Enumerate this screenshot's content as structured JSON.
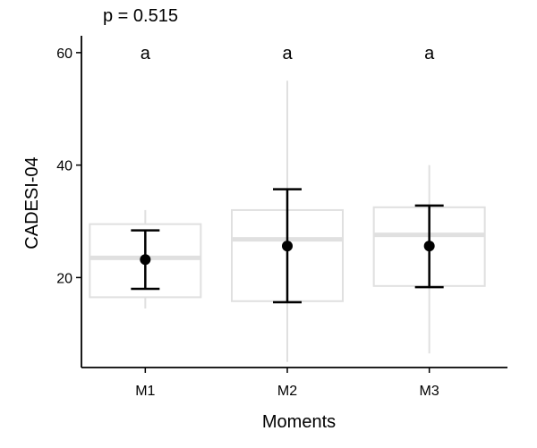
{
  "chart_data": {
    "type": "box",
    "annotation": "p = 0.515",
    "xlabel": "Moments",
    "ylabel": "CADESI-04",
    "categories": [
      "M1",
      "M2",
      "M3"
    ],
    "group_letters": [
      "a",
      "a",
      "a"
    ],
    "ylim": [
      4,
      63
    ],
    "yticks": [
      20,
      40,
      60
    ],
    "grid": false,
    "boxplot": [
      {
        "name": "M1",
        "whisker_low": 14.5,
        "q1": 16.5,
        "median": 23.5,
        "q3": 29.5,
        "whisker_high": 32.0
      },
      {
        "name": "M2",
        "whisker_low": 5.0,
        "q1": 15.8,
        "median": 26.8,
        "q3": 32.0,
        "whisker_high": 55.0
      },
      {
        "name": "M3",
        "whisker_low": 6.5,
        "q1": 18.5,
        "median": 27.6,
        "q3": 32.5,
        "whisker_high": 40.0
      }
    ],
    "mean_sd": [
      {
        "name": "M1",
        "mean": 23.2,
        "lower": 18.0,
        "upper": 28.4
      },
      {
        "name": "M2",
        "mean": 25.6,
        "lower": 15.6,
        "upper": 35.7
      },
      {
        "name": "M3",
        "mean": 25.6,
        "lower": 18.3,
        "upper": 32.8
      }
    ],
    "colors": {
      "box": "#e0e0e0",
      "point": "#000000",
      "errorbar": "#000000",
      "axis": "#000000"
    }
  }
}
